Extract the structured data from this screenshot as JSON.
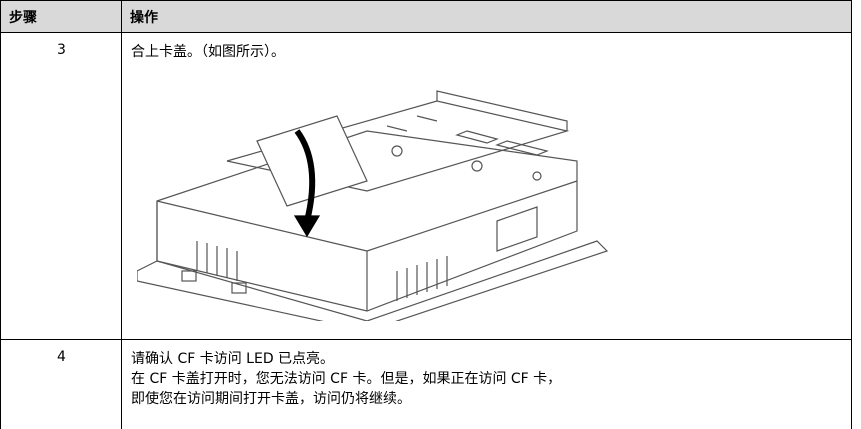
{
  "table": {
    "header": [
      "步骤",
      "操作"
    ],
    "rows": [
      {
        "step": "3",
        "lines": [
          "合上卡盖。（如图所示）。"
        ]
      },
      {
        "step": "4",
        "lines": [
          "请确认 CF 卡访问 LED 已点亮。",
          "在 CF 卡盖打开时，您无法访问 CF 卡。但是，如果正在访问 CF 卡，",
          "即使您在访问期间打开卡盖，访问仍将继续。"
        ]
      }
    ]
  }
}
